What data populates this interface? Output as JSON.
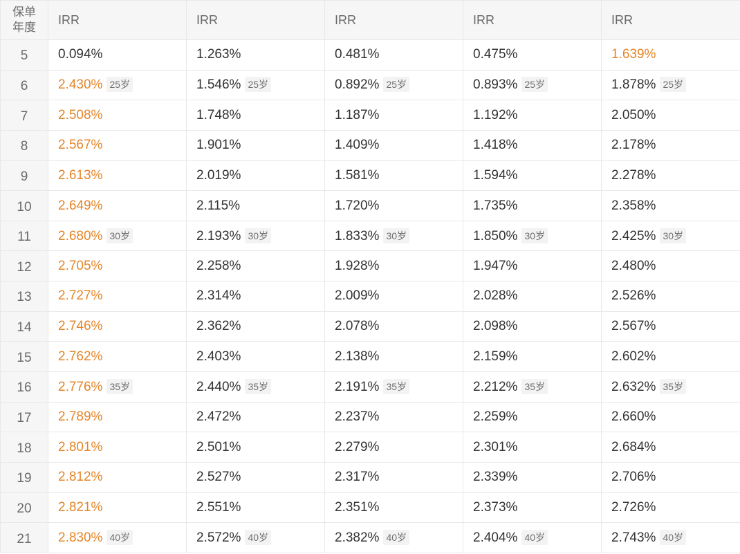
{
  "header": {
    "year_line1": "保单",
    "year_line2": "年度",
    "irr_labels": [
      "IRR",
      "IRR",
      "IRR",
      "IRR",
      "IRR"
    ]
  },
  "colors": {
    "highlight": "#e58527",
    "text": "#333333",
    "header_bg": "#f6f6f6",
    "border": "#e8e8e8"
  },
  "rows": [
    {
      "year": "5",
      "cells": [
        {
          "v": "0.094%",
          "hl": false,
          "age": ""
        },
        {
          "v": "1.263%",
          "hl": false,
          "age": ""
        },
        {
          "v": "0.481%",
          "hl": false,
          "age": ""
        },
        {
          "v": "0.475%",
          "hl": false,
          "age": ""
        },
        {
          "v": "1.639%",
          "hl": true,
          "age": ""
        }
      ]
    },
    {
      "year": "6",
      "cells": [
        {
          "v": "2.430%",
          "hl": true,
          "age": "25岁"
        },
        {
          "v": "1.546%",
          "hl": false,
          "age": "25岁"
        },
        {
          "v": "0.892%",
          "hl": false,
          "age": "25岁"
        },
        {
          "v": "0.893%",
          "hl": false,
          "age": "25岁"
        },
        {
          "v": "1.878%",
          "hl": false,
          "age": "25岁"
        }
      ]
    },
    {
      "year": "7",
      "cells": [
        {
          "v": "2.508%",
          "hl": true,
          "age": ""
        },
        {
          "v": "1.748%",
          "hl": false,
          "age": ""
        },
        {
          "v": "1.187%",
          "hl": false,
          "age": ""
        },
        {
          "v": "1.192%",
          "hl": false,
          "age": ""
        },
        {
          "v": "2.050%",
          "hl": false,
          "age": ""
        }
      ]
    },
    {
      "year": "8",
      "cells": [
        {
          "v": "2.567%",
          "hl": true,
          "age": ""
        },
        {
          "v": "1.901%",
          "hl": false,
          "age": ""
        },
        {
          "v": "1.409%",
          "hl": false,
          "age": ""
        },
        {
          "v": "1.418%",
          "hl": false,
          "age": ""
        },
        {
          "v": "2.178%",
          "hl": false,
          "age": ""
        }
      ]
    },
    {
      "year": "9",
      "cells": [
        {
          "v": "2.613%",
          "hl": true,
          "age": ""
        },
        {
          "v": "2.019%",
          "hl": false,
          "age": ""
        },
        {
          "v": "1.581%",
          "hl": false,
          "age": ""
        },
        {
          "v": "1.594%",
          "hl": false,
          "age": ""
        },
        {
          "v": "2.278%",
          "hl": false,
          "age": ""
        }
      ]
    },
    {
      "year": "10",
      "cells": [
        {
          "v": "2.649%",
          "hl": true,
          "age": ""
        },
        {
          "v": "2.115%",
          "hl": false,
          "age": ""
        },
        {
          "v": "1.720%",
          "hl": false,
          "age": ""
        },
        {
          "v": "1.735%",
          "hl": false,
          "age": ""
        },
        {
          "v": "2.358%",
          "hl": false,
          "age": ""
        }
      ]
    },
    {
      "year": "11",
      "cells": [
        {
          "v": "2.680%",
          "hl": true,
          "age": "30岁"
        },
        {
          "v": "2.193%",
          "hl": false,
          "age": "30岁"
        },
        {
          "v": "1.833%",
          "hl": false,
          "age": "30岁"
        },
        {
          "v": "1.850%",
          "hl": false,
          "age": "30岁"
        },
        {
          "v": "2.425%",
          "hl": false,
          "age": "30岁"
        }
      ]
    },
    {
      "year": "12",
      "cells": [
        {
          "v": "2.705%",
          "hl": true,
          "age": ""
        },
        {
          "v": "2.258%",
          "hl": false,
          "age": ""
        },
        {
          "v": "1.928%",
          "hl": false,
          "age": ""
        },
        {
          "v": "1.947%",
          "hl": false,
          "age": ""
        },
        {
          "v": "2.480%",
          "hl": false,
          "age": ""
        }
      ]
    },
    {
      "year": "13",
      "cells": [
        {
          "v": "2.727%",
          "hl": true,
          "age": ""
        },
        {
          "v": "2.314%",
          "hl": false,
          "age": ""
        },
        {
          "v": "2.009%",
          "hl": false,
          "age": ""
        },
        {
          "v": "2.028%",
          "hl": false,
          "age": ""
        },
        {
          "v": "2.526%",
          "hl": false,
          "age": ""
        }
      ]
    },
    {
      "year": "14",
      "cells": [
        {
          "v": "2.746%",
          "hl": true,
          "age": ""
        },
        {
          "v": "2.362%",
          "hl": false,
          "age": ""
        },
        {
          "v": "2.078%",
          "hl": false,
          "age": ""
        },
        {
          "v": "2.098%",
          "hl": false,
          "age": ""
        },
        {
          "v": "2.567%",
          "hl": false,
          "age": ""
        }
      ]
    },
    {
      "year": "15",
      "cells": [
        {
          "v": "2.762%",
          "hl": true,
          "age": ""
        },
        {
          "v": "2.403%",
          "hl": false,
          "age": ""
        },
        {
          "v": "2.138%",
          "hl": false,
          "age": ""
        },
        {
          "v": "2.159%",
          "hl": false,
          "age": ""
        },
        {
          "v": "2.602%",
          "hl": false,
          "age": ""
        }
      ]
    },
    {
      "year": "16",
      "cells": [
        {
          "v": "2.776%",
          "hl": true,
          "age": "35岁"
        },
        {
          "v": "2.440%",
          "hl": false,
          "age": "35岁"
        },
        {
          "v": "2.191%",
          "hl": false,
          "age": "35岁"
        },
        {
          "v": "2.212%",
          "hl": false,
          "age": "35岁"
        },
        {
          "v": "2.632%",
          "hl": false,
          "age": "35岁"
        }
      ]
    },
    {
      "year": "17",
      "cells": [
        {
          "v": "2.789%",
          "hl": true,
          "age": ""
        },
        {
          "v": "2.472%",
          "hl": false,
          "age": ""
        },
        {
          "v": "2.237%",
          "hl": false,
          "age": ""
        },
        {
          "v": "2.259%",
          "hl": false,
          "age": ""
        },
        {
          "v": "2.660%",
          "hl": false,
          "age": ""
        }
      ]
    },
    {
      "year": "18",
      "cells": [
        {
          "v": "2.801%",
          "hl": true,
          "age": ""
        },
        {
          "v": "2.501%",
          "hl": false,
          "age": ""
        },
        {
          "v": "2.279%",
          "hl": false,
          "age": ""
        },
        {
          "v": "2.301%",
          "hl": false,
          "age": ""
        },
        {
          "v": "2.684%",
          "hl": false,
          "age": ""
        }
      ]
    },
    {
      "year": "19",
      "cells": [
        {
          "v": "2.812%",
          "hl": true,
          "age": ""
        },
        {
          "v": "2.527%",
          "hl": false,
          "age": ""
        },
        {
          "v": "2.317%",
          "hl": false,
          "age": ""
        },
        {
          "v": "2.339%",
          "hl": false,
          "age": ""
        },
        {
          "v": "2.706%",
          "hl": false,
          "age": ""
        }
      ]
    },
    {
      "year": "20",
      "cells": [
        {
          "v": "2.821%",
          "hl": true,
          "age": ""
        },
        {
          "v": "2.551%",
          "hl": false,
          "age": ""
        },
        {
          "v": "2.351%",
          "hl": false,
          "age": ""
        },
        {
          "v": "2.373%",
          "hl": false,
          "age": ""
        },
        {
          "v": "2.726%",
          "hl": false,
          "age": ""
        }
      ]
    },
    {
      "year": "21",
      "cells": [
        {
          "v": "2.830%",
          "hl": true,
          "age": "40岁"
        },
        {
          "v": "2.572%",
          "hl": false,
          "age": "40岁"
        },
        {
          "v": "2.382%",
          "hl": false,
          "age": "40岁"
        },
        {
          "v": "2.404%",
          "hl": false,
          "age": "40岁"
        },
        {
          "v": "2.743%",
          "hl": false,
          "age": "40岁"
        }
      ]
    }
  ]
}
